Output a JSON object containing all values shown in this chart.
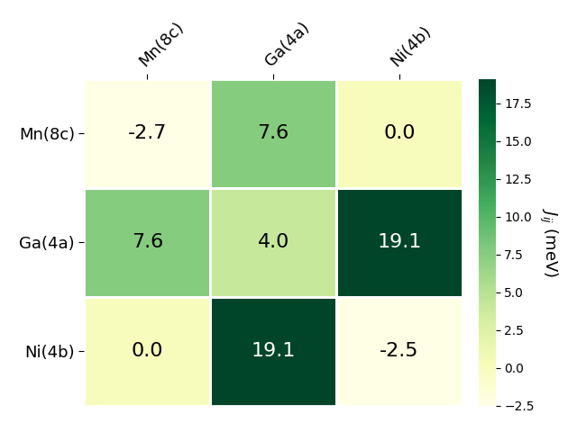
{
  "labels": [
    "Mn(8c)",
    "Ga(4a)",
    "Ni(4b)"
  ],
  "matrix": [
    [
      -2.7,
      7.6,
      0.0
    ],
    [
      7.6,
      4.0,
      19.1
    ],
    [
      0.0,
      19.1,
      -2.5
    ]
  ],
  "vmin": -2.5,
  "vmax": 19.1,
  "cmap": "YlGn",
  "colorbar_label": "$J_{ij}$ (meV)",
  "colorbar_ticks": [
    -2.5,
    0.0,
    2.5,
    5.0,
    7.5,
    10.0,
    12.5,
    15.0,
    17.5
  ],
  "text_color_threshold": 12.0,
  "fontsize_annot": 16,
  "fontsize_labels": 13,
  "fontsize_colorbar": 13
}
